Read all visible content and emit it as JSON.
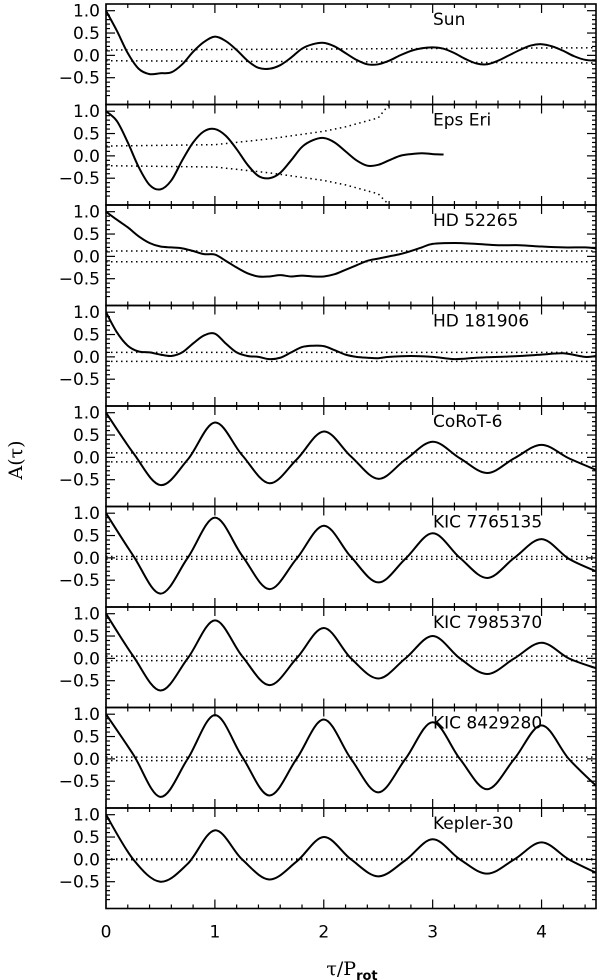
{
  "chart_data": {
    "type": "line",
    "xlabel": "τ/P",
    "xlabel_sub": "rot",
    "ylabel": "A(τ)",
    "xlim": [
      0,
      4.5
    ],
    "ylim": [
      -1.1,
      1.15
    ],
    "x_ticks": [
      0,
      1,
      2,
      3,
      4
    ],
    "y_ticks": [
      1.0,
      0.5,
      0.0,
      -0.5
    ],
    "y_tick_labels": [
      "1.0",
      "0.5",
      "0.0",
      "−0.5"
    ],
    "panels": [
      {
        "name": "Sun",
        "x": [
          0,
          0.1,
          0.2,
          0.3,
          0.4,
          0.5,
          0.6,
          0.7,
          0.8,
          0.9,
          1.0,
          1.1,
          1.2,
          1.3,
          1.4,
          1.5,
          1.6,
          1.7,
          1.8,
          1.9,
          2.0,
          2.1,
          2.2,
          2.3,
          2.4,
          2.5,
          2.6,
          2.7,
          2.8,
          2.9,
          3.0,
          3.1,
          3.2,
          3.3,
          3.4,
          3.5,
          3.6,
          3.7,
          3.8,
          3.9,
          4.0,
          4.1,
          4.2,
          4.3,
          4.4,
          4.5
        ],
        "y": [
          1.0,
          0.55,
          0.05,
          -0.3,
          -0.42,
          -0.4,
          -0.38,
          -0.2,
          0.08,
          0.3,
          0.42,
          0.32,
          0.12,
          -0.12,
          -0.28,
          -0.3,
          -0.22,
          -0.05,
          0.15,
          0.25,
          0.28,
          0.2,
          0.05,
          -0.1,
          -0.2,
          -0.2,
          -0.12,
          0.0,
          0.1,
          0.16,
          0.18,
          0.15,
          0.05,
          -0.08,
          -0.18,
          -0.2,
          -0.12,
          0.0,
          0.12,
          0.22,
          0.25,
          0.2,
          0.1,
          -0.02,
          -0.1,
          -0.12
        ],
        "conf_upper": {
          "x": [
            0,
            4.5
          ],
          "y": [
            0.12,
            0.17
          ]
        },
        "conf_lower": {
          "x": [
            0,
            4.5
          ],
          "y": [
            -0.12,
            -0.17
          ]
        }
      },
      {
        "name": "Eps Eri",
        "x": [
          0,
          0.1,
          0.2,
          0.3,
          0.4,
          0.5,
          0.6,
          0.7,
          0.8,
          0.9,
          1.0,
          1.1,
          1.2,
          1.3,
          1.4,
          1.5,
          1.6,
          1.7,
          1.8,
          1.9,
          2.0,
          2.1,
          2.2,
          2.3,
          2.4,
          2.5,
          2.6,
          2.7,
          2.8,
          2.9,
          3.0,
          3.1
        ],
        "y": [
          1.0,
          0.78,
          0.3,
          -0.25,
          -0.65,
          -0.75,
          -0.55,
          -0.1,
          0.3,
          0.55,
          0.6,
          0.45,
          0.15,
          -0.2,
          -0.45,
          -0.5,
          -0.38,
          -0.1,
          0.2,
          0.35,
          0.4,
          0.3,
          0.1,
          -0.1,
          -0.22,
          -0.2,
          -0.1,
          0.0,
          0.04,
          0.06,
          0.04,
          0.03
        ],
        "conf_upper": {
          "x": [
            0,
            1.0,
            1.5,
            2.0,
            2.2,
            2.5,
            2.6
          ],
          "y": [
            0.22,
            0.25,
            0.38,
            0.55,
            0.65,
            0.85,
            1.15
          ]
        },
        "conf_lower": {
          "x": [
            0,
            1.0,
            1.5,
            2.0,
            2.2,
            2.5,
            2.6
          ],
          "y": [
            -0.22,
            -0.25,
            -0.38,
            -0.55,
            -0.65,
            -0.85,
            -1.1
          ]
        }
      },
      {
        "name": "HD 52265",
        "x": [
          0,
          0.1,
          0.2,
          0.3,
          0.4,
          0.5,
          0.6,
          0.7,
          0.8,
          0.9,
          1.0,
          1.1,
          1.2,
          1.3,
          1.4,
          1.5,
          1.6,
          1.7,
          1.8,
          1.9,
          2.0,
          2.1,
          2.2,
          2.3,
          2.4,
          2.5,
          2.6,
          2.7,
          2.8,
          2.9,
          3.0,
          3.2,
          3.4,
          3.6,
          3.8,
          4.0,
          4.2,
          4.4,
          4.5
        ],
        "y": [
          1.0,
          0.82,
          0.65,
          0.45,
          0.3,
          0.22,
          0.2,
          0.18,
          0.12,
          0.05,
          0.04,
          -0.1,
          -0.25,
          -0.38,
          -0.45,
          -0.45,
          -0.42,
          -0.45,
          -0.43,
          -0.45,
          -0.45,
          -0.4,
          -0.3,
          -0.2,
          -0.1,
          -0.05,
          0.0,
          0.05,
          0.12,
          0.2,
          0.28,
          0.3,
          0.28,
          0.25,
          0.25,
          0.22,
          0.2,
          0.2,
          0.18
        ],
        "conf_upper": {
          "x": [
            0,
            4.5
          ],
          "y": [
            0.12,
            0.12
          ]
        },
        "conf_lower": {
          "x": [
            0,
            4.5
          ],
          "y": [
            -0.12,
            -0.12
          ]
        }
      },
      {
        "name": "HD 181906",
        "x": [
          0,
          0.1,
          0.2,
          0.3,
          0.4,
          0.5,
          0.6,
          0.7,
          0.8,
          0.9,
          1.0,
          1.1,
          1.2,
          1.3,
          1.4,
          1.5,
          1.6,
          1.7,
          1.8,
          1.9,
          2.0,
          2.1,
          2.2,
          2.3,
          2.4,
          2.5,
          2.6,
          2.8,
          3.0,
          3.2,
          3.4,
          3.6,
          3.8,
          4.0,
          4.2,
          4.4,
          4.5
        ],
        "y": [
          1.0,
          0.55,
          0.25,
          0.12,
          0.1,
          0.05,
          0.02,
          0.1,
          0.3,
          0.48,
          0.52,
          0.3,
          0.1,
          0.02,
          0.0,
          -0.05,
          -0.02,
          0.1,
          0.22,
          0.25,
          0.24,
          0.15,
          0.05,
          0.0,
          -0.02,
          -0.03,
          0.0,
          0.02,
          0.0,
          -0.05,
          -0.02,
          0.0,
          0.02,
          0.05,
          0.08,
          0.0,
          0.02
        ],
        "conf_upper": {
          "x": [
            0,
            4.5
          ],
          "y": [
            0.1,
            0.1
          ]
        },
        "conf_lower": {
          "x": [
            0,
            4.5
          ],
          "y": [
            -0.1,
            -0.1
          ]
        }
      },
      {
        "name": "CoRoT-6",
        "x": [
          0,
          0.25,
          0.5,
          0.75,
          1.0,
          1.25,
          1.5,
          1.75,
          2.0,
          2.25,
          2.5,
          2.75,
          3.0,
          3.25,
          3.5,
          3.75,
          4.0,
          4.25,
          4.5
        ],
        "y": [
          1.0,
          0.1,
          -0.62,
          -0.05,
          0.78,
          0.05,
          -0.58,
          -0.05,
          0.58,
          0.02,
          -0.48,
          -0.05,
          0.35,
          -0.02,
          -0.35,
          -0.02,
          0.28,
          -0.02,
          -0.28
        ],
        "conf_upper": {
          "x": [
            0,
            4.5
          ],
          "y": [
            0.1,
            0.1
          ]
        },
        "conf_lower": {
          "x": [
            0,
            4.5
          ],
          "y": [
            -0.1,
            -0.1
          ]
        }
      },
      {
        "name": "KIC 7765135",
        "x": [
          0,
          0.25,
          0.5,
          0.75,
          1.0,
          1.25,
          1.5,
          1.75,
          2.0,
          2.25,
          2.5,
          2.75,
          3.0,
          3.25,
          3.5,
          3.75,
          4.0,
          4.25,
          4.5
        ],
        "y": [
          1.0,
          0.05,
          -0.8,
          0.0,
          0.9,
          0.05,
          -0.7,
          -0.02,
          0.72,
          0.02,
          -0.55,
          -0.02,
          0.55,
          0.0,
          -0.45,
          0.0,
          0.42,
          -0.02,
          -0.3
        ],
        "conf_upper": {
          "x": [
            0,
            4.5
          ],
          "y": [
            0.03,
            0.03
          ]
        },
        "conf_lower": {
          "x": [
            0,
            4.5
          ],
          "y": [
            -0.03,
            -0.03
          ]
        }
      },
      {
        "name": "KIC 7985370",
        "x": [
          0,
          0.25,
          0.5,
          0.75,
          1.0,
          1.25,
          1.5,
          1.75,
          2.0,
          2.25,
          2.5,
          2.75,
          3.0,
          3.25,
          3.5,
          3.75,
          4.0,
          4.25,
          4.5
        ],
        "y": [
          1.0,
          0.05,
          -0.72,
          0.0,
          0.85,
          0.05,
          -0.6,
          0.0,
          0.68,
          0.0,
          -0.45,
          0.0,
          0.5,
          0.0,
          -0.35,
          0.0,
          0.35,
          0.0,
          -0.22
        ],
        "conf_upper": {
          "x": [
            0,
            4.5
          ],
          "y": [
            0.05,
            0.05
          ]
        },
        "conf_lower": {
          "x": [
            0,
            4.5
          ],
          "y": [
            -0.05,
            -0.05
          ]
        }
      },
      {
        "name": "KIC 8429280",
        "x": [
          0,
          0.25,
          0.5,
          0.75,
          1.0,
          1.25,
          1.5,
          1.75,
          2.0,
          2.25,
          2.5,
          2.75,
          3.0,
          3.25,
          3.5,
          3.75,
          4.0,
          4.25,
          4.5
        ],
        "y": [
          1.0,
          0.1,
          -0.85,
          0.0,
          0.98,
          0.05,
          -0.82,
          0.0,
          0.88,
          0.0,
          -0.75,
          0.0,
          0.82,
          0.0,
          -0.68,
          0.0,
          0.75,
          0.0,
          -0.6
        ],
        "conf_upper": {
          "x": [
            0,
            4.5
          ],
          "y": [
            0.04,
            0.04
          ]
        },
        "conf_lower": {
          "x": [
            0,
            4.5
          ],
          "y": [
            -0.04,
            -0.04
          ]
        }
      },
      {
        "name": "Kepler-30",
        "x": [
          0,
          0.25,
          0.5,
          0.75,
          1.0,
          1.25,
          1.5,
          1.75,
          2.0,
          2.25,
          2.5,
          2.75,
          3.0,
          3.25,
          3.5,
          3.75,
          4.0,
          4.25,
          4.5
        ],
        "y": [
          1.0,
          0.0,
          -0.5,
          -0.1,
          0.65,
          0.0,
          -0.45,
          -0.05,
          0.5,
          0.0,
          -0.38,
          -0.02,
          0.45,
          0.0,
          -0.32,
          0.0,
          0.38,
          0.0,
          -0.3
        ],
        "conf_upper": {
          "x": [
            0,
            4.5
          ],
          "y": [
            0.01,
            0.01
          ]
        },
        "conf_lower": {
          "x": [
            0,
            4.5
          ],
          "y": [
            -0.01,
            -0.01
          ]
        }
      }
    ]
  }
}
